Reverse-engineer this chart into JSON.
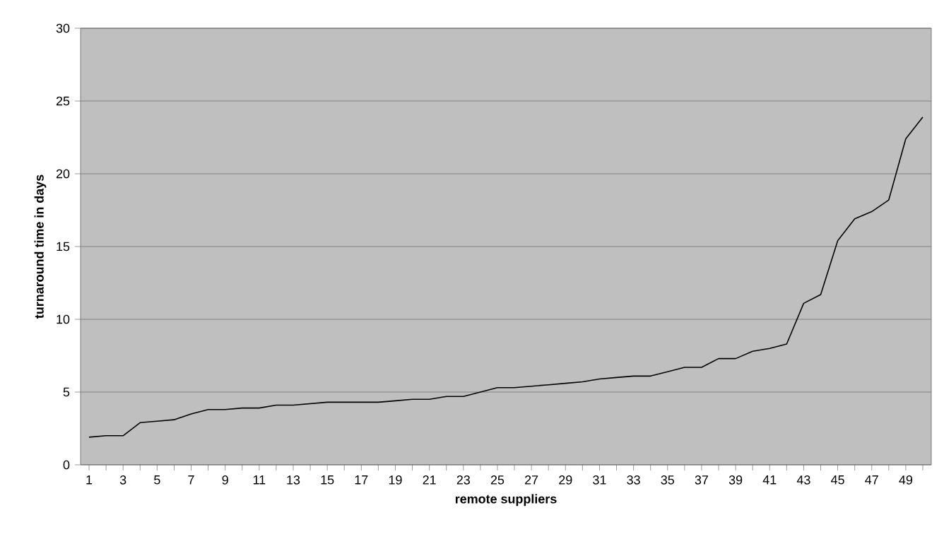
{
  "chart_data": {
    "type": "line",
    "xlabel": "remote suppliers",
    "ylabel": "turnaround time in days",
    "categories": [
      "1",
      null,
      "3",
      null,
      "5",
      null,
      "7",
      null,
      "9",
      null,
      "11",
      null,
      "13",
      null,
      "15",
      null,
      "17",
      null,
      "19",
      null,
      "21",
      null,
      "23",
      null,
      "25",
      null,
      "27",
      null,
      "29",
      null,
      "31",
      null,
      "33",
      null,
      "35",
      null,
      "37",
      null,
      "39",
      null,
      "41",
      null,
      "43",
      null,
      "45",
      null,
      "47",
      null,
      "49",
      null
    ],
    "values": [
      1.9,
      2.0,
      2.0,
      2.9,
      3.0,
      3.1,
      3.5,
      3.8,
      3.8,
      3.9,
      3.9,
      4.1,
      4.1,
      4.2,
      4.3,
      4.3,
      4.3,
      4.3,
      4.4,
      4.5,
      4.5,
      4.7,
      4.7,
      5.0,
      5.3,
      5.3,
      5.4,
      5.5,
      5.6,
      5.7,
      5.9,
      6.0,
      6.1,
      6.1,
      6.4,
      6.7,
      6.7,
      7.3,
      7.3,
      7.8,
      8.0,
      8.3,
      11.1,
      11.7,
      15.4,
      16.9,
      17.4,
      18.2,
      22.4,
      23.9
    ],
    "color": "#000000",
    "ylim": [
      0,
      30
    ],
    "yticks": [
      0,
      5,
      10,
      15,
      20,
      25,
      30
    ],
    "grid": "y"
  }
}
